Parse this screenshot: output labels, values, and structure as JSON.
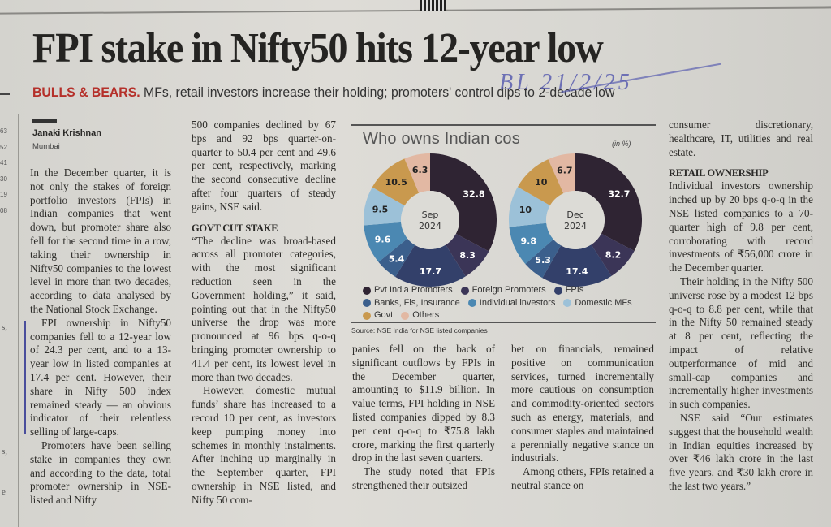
{
  "page": {
    "qr_caption": "",
    "handwritten_note": "BL 21/2/25",
    "headline": "FPI stake in Nifty50 hits 12-year low",
    "deck": {
      "kicker": "BULLS & BEARS.",
      "text": "MFs, retail investors increase their holding; promoters' control dips to 2-decade low"
    },
    "byline": {
      "author": "Janaki Krishnan",
      "location": "Mumbai"
    },
    "margin": {
      "numbers": [
        "63",
        "52",
        "41",
        "30",
        "19",
        "08"
      ],
      "chars": [
        "s,",
        "s,",
        "e"
      ]
    }
  },
  "article": {
    "col1": [
      "In the December quarter, it is not only the stakes of foreign portfolio investors (FPIs) in Indian companies that went down, but promoter share also fell for the second time in a row, taking their ownership in Nifty50 companies to the lowest level in more than two decades, according to data analysed by the National Stock Exchange.",
      "FPI ownership in Nifty50 companies fell to a 12-year low of 24.3 per cent, and to a 13-year low in listed companies at 17.4 per cent. However, their share in Nifty 500 index remained steady — an obvious indicator of their relentless selling of large-caps.",
      "Promoters have been selling stake in companies they own and according to the data, total promoter ownership in NSE-listed and Nifty"
    ],
    "col2_p1": "500 companies declined by 67 bps and 92 bps quarter-on-quarter to 50.4 per cent and 49.6 per cent, respectively, marking the second consecutive decline after four quarters of steady gains, NSE said.",
    "col2_subhead": "GOVT CUT STAKE",
    "col2": [
      "“The decline was broad-based across all promoter categories, with the most significant reduction seen in the Government holding,” it said, pointing out that in the Nifty50 universe the drop was more pronounced at 96 bps q-o-q bringing promoter ownership to 41.4 per cent, its lowest level in more than two decades.",
      "However, domestic mutual funds’ share has increased to a record 10 per cent, as investors keep pumping money into schemes in monthly instalments. After inching up marginally in the September quarter, FPI ownership in NSE listed, and Nifty 50 com-"
    ],
    "col3": [
      "panies fell on the back of significant outflows by FPIs in the December quarter, amounting to $11.9 billion. In value terms, FPI holding in NSE listed companies dipped by 8.3 per cent q-o-q to ₹75.8 lakh crore, marking the first quarterly drop in the last seven quarters.",
      "The study noted that FPIs strengthened their outsized"
    ],
    "col4": [
      "bet on financials, remained positive on communication services, turned incrementally more cautious on consumption and commodity-oriented sectors such as energy, materials, and consumer staples and maintained a perennially negative stance on industrials.",
      "Among others, FPIs retained a neutral stance on"
    ],
    "col5_p1": "consumer discretionary, healthcare, IT, utilities and real estate.",
    "col5_subhead": "RETAIL OWNERSHIP",
    "col5": [
      "Individual investors ownership inched up by 20 bps q-o-q in the NSE listed companies to a 70-quarter high of 9.8 per cent, corroborating with record investments of ₹56,000 crore in the December quarter.",
      "Their holding in the Nifty 500 universe rose by a modest 12 bps q-o-q to 8.8 per cent, while that in the Nifty 50 remained steady at 8 per cent, reflecting the impact of relative outperformance of mid and small-cap companies and incrementally higher investments in such companies.",
      "NSE said “Our estimates suggest that the household wealth in Indian equities increased by over ₹46 lakh crore in the last five years, and ₹30 lakh crore in the last two years.”"
    ]
  },
  "chart_data": {
    "type": "pie",
    "title": "Who owns Indian cos",
    "unit_label": "(in %)",
    "source": "Source: NSE India for NSE listed companies",
    "categories": [
      "Pvt India Promoters",
      "Foreign Promoters",
      "FPIs",
      "Banks, Fis, Insurance",
      "Individual investors",
      "Domestic MFs",
      "Govt",
      "Others"
    ],
    "colors": [
      "#2f2433",
      "#3b3557",
      "#33406a",
      "#3b5f8c",
      "#4b88b2",
      "#9cc1d8",
      "#c9994e",
      "#e2b8a3"
    ],
    "label_colors": [
      "#ffffff",
      "#ffffff",
      "#ffffff",
      "#ffffff",
      "#ffffff",
      "#222222",
      "#222222",
      "#222222"
    ],
    "series": [
      {
        "name": "Sep 2024",
        "center_label": [
          "Sep",
          "2024"
        ],
        "values": [
          32.8,
          8.3,
          17.7,
          5.4,
          9.6,
          9.5,
          10.5,
          6.3
        ]
      },
      {
        "name": "Dec 2024",
        "center_label": [
          "Dec",
          "2024"
        ],
        "values": [
          32.7,
          8.2,
          17.4,
          5.3,
          9.8,
          10,
          10,
          6.7
        ]
      }
    ]
  }
}
